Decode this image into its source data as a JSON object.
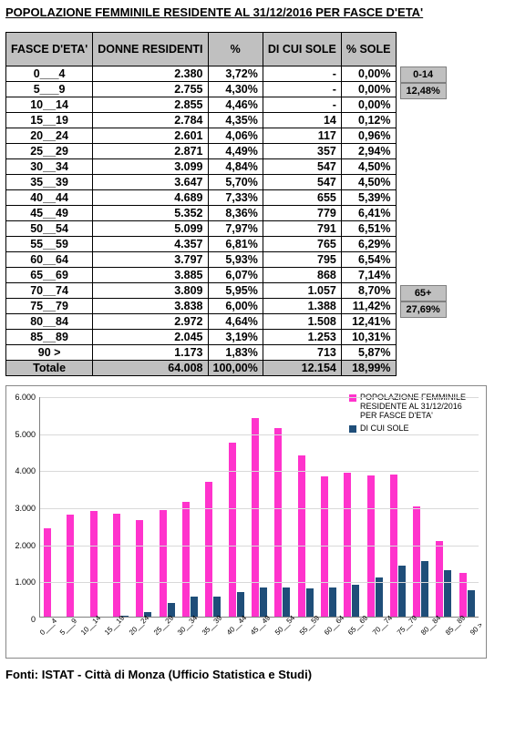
{
  "title": "POPOLAZIONE FEMMINILE RESIDENTE AL 31/12/2016 PER FASCE D'ETA'",
  "source": "Fonti: ISTAT - Città di Monza (Ufficio Statistica e Studi)",
  "columns": [
    "FASCE D'ETA'",
    "DONNE RESIDENTI",
    "%",
    "DI CUI SOLE",
    "% SOLE"
  ],
  "rows": [
    {
      "age": "0___4",
      "res": "2.380",
      "pct": "3,72%",
      "sole": "-",
      "psole": "0,00%",
      "vres": 2380,
      "vsole": 0
    },
    {
      "age": "5___9",
      "res": "2.755",
      "pct": "4,30%",
      "sole": "-",
      "psole": "0,00%",
      "vres": 2755,
      "vsole": 0
    },
    {
      "age": "10__14",
      "res": "2.855",
      "pct": "4,46%",
      "sole": "-",
      "psole": "0,00%",
      "vres": 2855,
      "vsole": 0
    },
    {
      "age": "15__19",
      "res": "2.784",
      "pct": "4,35%",
      "sole": "14",
      "psole": "0,12%",
      "vres": 2784,
      "vsole": 14
    },
    {
      "age": "20__24",
      "res": "2.601",
      "pct": "4,06%",
      "sole": "117",
      "psole": "0,96%",
      "vres": 2601,
      "vsole": 117
    },
    {
      "age": "25__29",
      "res": "2.871",
      "pct": "4,49%",
      "sole": "357",
      "psole": "2,94%",
      "vres": 2871,
      "vsole": 357
    },
    {
      "age": "30__34",
      "res": "3.099",
      "pct": "4,84%",
      "sole": "547",
      "psole": "4,50%",
      "vres": 3099,
      "vsole": 547
    },
    {
      "age": "35__39",
      "res": "3.647",
      "pct": "5,70%",
      "sole": "547",
      "psole": "4,50%",
      "vres": 3647,
      "vsole": 547
    },
    {
      "age": "40__44",
      "res": "4.689",
      "pct": "7,33%",
      "sole": "655",
      "psole": "5,39%",
      "vres": 4689,
      "vsole": 655
    },
    {
      "age": "45__49",
      "res": "5.352",
      "pct": "8,36%",
      "sole": "779",
      "psole": "6,41%",
      "vres": 5352,
      "vsole": 779
    },
    {
      "age": "50__54",
      "res": "5.099",
      "pct": "7,97%",
      "sole": "791",
      "psole": "6,51%",
      "vres": 5099,
      "vsole": 791
    },
    {
      "age": "55__59",
      "res": "4.357",
      "pct": "6,81%",
      "sole": "765",
      "psole": "6,29%",
      "vres": 4357,
      "vsole": 765
    },
    {
      "age": "60__64",
      "res": "3.797",
      "pct": "5,93%",
      "sole": "795",
      "psole": "6,54%",
      "vres": 3797,
      "vsole": 795
    },
    {
      "age": "65__69",
      "res": "3.885",
      "pct": "6,07%",
      "sole": "868",
      "psole": "7,14%",
      "vres": 3885,
      "vsole": 868
    },
    {
      "age": "70__74",
      "res": "3.809",
      "pct": "5,95%",
      "sole": "1.057",
      "psole": "8,70%",
      "vres": 3809,
      "vsole": 1057
    },
    {
      "age": "75__79",
      "res": "3.838",
      "pct": "6,00%",
      "sole": "1.388",
      "psole": "11,42%",
      "vres": 3838,
      "vsole": 1388
    },
    {
      "age": "80__84",
      "res": "2.972",
      "pct": "4,64%",
      "sole": "1.508",
      "psole": "12,41%",
      "vres": 2972,
      "vsole": 1508
    },
    {
      "age": "85__89",
      "res": "2.045",
      "pct": "3,19%",
      "sole": "1.253",
      "psole": "10,31%",
      "vres": 2045,
      "vsole": 1253
    },
    {
      "age": "90 >",
      "res": "1.173",
      "pct": "1,83%",
      "sole": "713",
      "psole": "5,87%",
      "vres": 1173,
      "vsole": 713
    }
  ],
  "total": {
    "label": "Totale",
    "res": "64.008",
    "pct": "100,00%",
    "sole": "12.154",
    "psole": "18,99%"
  },
  "side": {
    "group1_label": "0-14",
    "group1_pct": "12,48%",
    "group2_label": "65+",
    "group2_pct": "27,69%",
    "row_offset_1": 0,
    "row_offset_2": 12
  },
  "chart": {
    "type": "bar-grouped",
    "ymax": 6000,
    "ytick_step": 1000,
    "ylabels": [
      "0",
      "1.000",
      "2.000",
      "3.000",
      "4.000",
      "5.000",
      "6.000"
    ],
    "series": [
      {
        "name": "POPOLAZIONE FEMMINILE RESIDENTE AL 31/12/2016 PER FASCE D'ETA'",
        "color": "#ff33cc",
        "key": "vres"
      },
      {
        "name": "DI CUI SOLE",
        "color": "#1f4e79",
        "key": "vsole"
      }
    ],
    "grid_color": "#d9d9d9",
    "bg": "#ffffff"
  }
}
